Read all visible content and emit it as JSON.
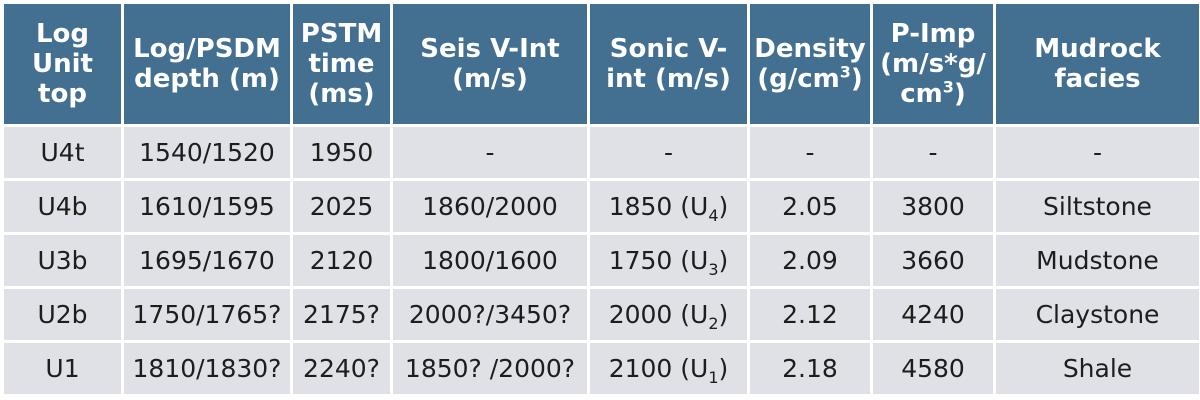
{
  "table": {
    "headers": [
      {
        "text": "Log Unit top"
      },
      {
        "text": "Log/PSDM depth (m)"
      },
      {
        "text": "PSTM time (ms)"
      },
      {
        "text": "Seis V-Int (m/s)"
      },
      {
        "text": "Sonic V-int (m/s)"
      },
      {
        "text": "Density (g/cm",
        "sup": "3",
        "after": ")"
      },
      {
        "text": "P-Imp (m/s*g/ cm",
        "sup": "3",
        "after": ")"
      },
      {
        "text": "Mudrock facies"
      }
    ],
    "rows": [
      {
        "unit": "U4t",
        "depth": "1540/1520",
        "time": "1950",
        "seis": "-",
        "sonic": "-",
        "sonic_sub": "",
        "sonic_close": "",
        "density": "-",
        "pimp": "-",
        "facies": "-"
      },
      {
        "unit": "U4b",
        "depth": "1610/1595",
        "time": "2025",
        "seis": "1860/2000",
        "sonic": "1850 (U",
        "sonic_sub": "4",
        "sonic_close": ")",
        "density": "2.05",
        "pimp": "3800",
        "facies": "Siltstone"
      },
      {
        "unit": "U3b",
        "depth": "1695/1670",
        "time": "2120",
        "seis": "1800/1600",
        "sonic": "1750 (U",
        "sonic_sub": "3",
        "sonic_close": ")",
        "density": "2.09",
        "pimp": "3660",
        "facies": "Mudstone"
      },
      {
        "unit": "U2b",
        "depth": "1750/1765?",
        "time": "2175?",
        "seis": "2000?/3450?",
        "sonic": "2000 (U",
        "sonic_sub": "2",
        "sonic_close": ")",
        "density": "2.12",
        "pimp": "4240",
        "facies": "Claystone"
      },
      {
        "unit": "U1",
        "depth": "1810/1830?",
        "time": "2240?",
        "seis": "1850? /2000?",
        "sonic": "2100 (U",
        "sonic_sub": "1",
        "sonic_close": ")",
        "density": "2.18",
        "pimp": "4580",
        "facies": "Shale"
      }
    ]
  }
}
